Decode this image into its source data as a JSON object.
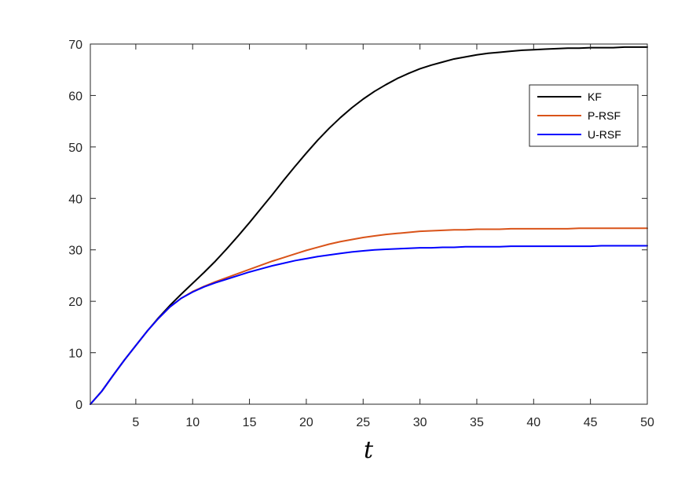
{
  "chart_data": {
    "type": "line",
    "title": "",
    "xlabel": "t",
    "ylabel": "",
    "xlim": [
      1,
      50
    ],
    "ylim": [
      0,
      70
    ],
    "xticks": [
      5,
      10,
      15,
      20,
      25,
      30,
      35,
      40,
      45,
      50
    ],
    "yticks": [
      0,
      10,
      20,
      30,
      40,
      50,
      60,
      70
    ],
    "grid": false,
    "legend_position": "top-right",
    "series": [
      {
        "name": "KF",
        "color": "#000000",
        "x": [
          1,
          2,
          3,
          4,
          5,
          6,
          7,
          8,
          9,
          10,
          11,
          12,
          13,
          14,
          15,
          16,
          17,
          18,
          19,
          20,
          21,
          22,
          23,
          24,
          25,
          26,
          27,
          28,
          29,
          30,
          31,
          32,
          33,
          34,
          35,
          36,
          37,
          38,
          39,
          40,
          41,
          42,
          43,
          44,
          45,
          46,
          47,
          48,
          49,
          50
        ],
        "y": [
          0,
          2.5,
          5.6,
          8.6,
          11.4,
          14.2,
          16.8,
          19.2,
          21.4,
          23.5,
          25.6,
          27.8,
          30.2,
          32.7,
          35.3,
          38.0,
          40.7,
          43.5,
          46.2,
          48.8,
          51.3,
          53.6,
          55.7,
          57.6,
          59.3,
          60.8,
          62.1,
          63.3,
          64.3,
          65.2,
          65.9,
          66.5,
          67.1,
          67.5,
          67.9,
          68.2,
          68.4,
          68.6,
          68.8,
          68.9,
          69.0,
          69.1,
          69.2,
          69.2,
          69.3,
          69.3,
          69.3,
          69.4,
          69.4,
          69.4
        ]
      },
      {
        "name": "P-RSF",
        "color": "#D95319",
        "x": [
          1,
          2,
          3,
          4,
          5,
          6,
          7,
          8,
          9,
          10,
          11,
          12,
          13,
          14,
          15,
          16,
          17,
          18,
          19,
          20,
          21,
          22,
          23,
          24,
          25,
          26,
          27,
          28,
          29,
          30,
          31,
          32,
          33,
          34,
          35,
          36,
          37,
          38,
          39,
          40,
          41,
          42,
          43,
          44,
          45,
          46,
          47,
          48,
          49,
          50
        ],
        "y": [
          0,
          2.5,
          5.6,
          8.6,
          11.4,
          14.2,
          16.7,
          18.9,
          20.6,
          21.9,
          22.9,
          23.8,
          24.6,
          25.4,
          26.2,
          27.0,
          27.8,
          28.5,
          29.2,
          29.9,
          30.5,
          31.1,
          31.6,
          32.0,
          32.4,
          32.7,
          33.0,
          33.2,
          33.4,
          33.6,
          33.7,
          33.8,
          33.9,
          33.9,
          34.0,
          34.0,
          34.0,
          34.1,
          34.1,
          34.1,
          34.1,
          34.1,
          34.1,
          34.2,
          34.2,
          34.2,
          34.2,
          34.2,
          34.2,
          34.2
        ]
      },
      {
        "name": "U-RSF",
        "color": "#0000FF",
        "x": [
          1,
          2,
          3,
          4,
          5,
          6,
          7,
          8,
          9,
          10,
          11,
          12,
          13,
          14,
          15,
          16,
          17,
          18,
          19,
          20,
          21,
          22,
          23,
          24,
          25,
          26,
          27,
          28,
          29,
          30,
          31,
          32,
          33,
          34,
          35,
          36,
          37,
          38,
          39,
          40,
          41,
          42,
          43,
          44,
          45,
          46,
          47,
          48,
          49,
          50
        ],
        "y": [
          0,
          2.5,
          5.6,
          8.6,
          11.4,
          14.2,
          16.7,
          18.9,
          20.6,
          21.8,
          22.8,
          23.6,
          24.3,
          25.0,
          25.7,
          26.3,
          26.9,
          27.4,
          27.9,
          28.3,
          28.7,
          29.0,
          29.3,
          29.6,
          29.8,
          30.0,
          30.1,
          30.2,
          30.3,
          30.4,
          30.4,
          30.5,
          30.5,
          30.6,
          30.6,
          30.6,
          30.6,
          30.7,
          30.7,
          30.7,
          30.7,
          30.7,
          30.7,
          30.7,
          30.7,
          30.8,
          30.8,
          30.8,
          30.8,
          30.8
        ]
      }
    ]
  }
}
